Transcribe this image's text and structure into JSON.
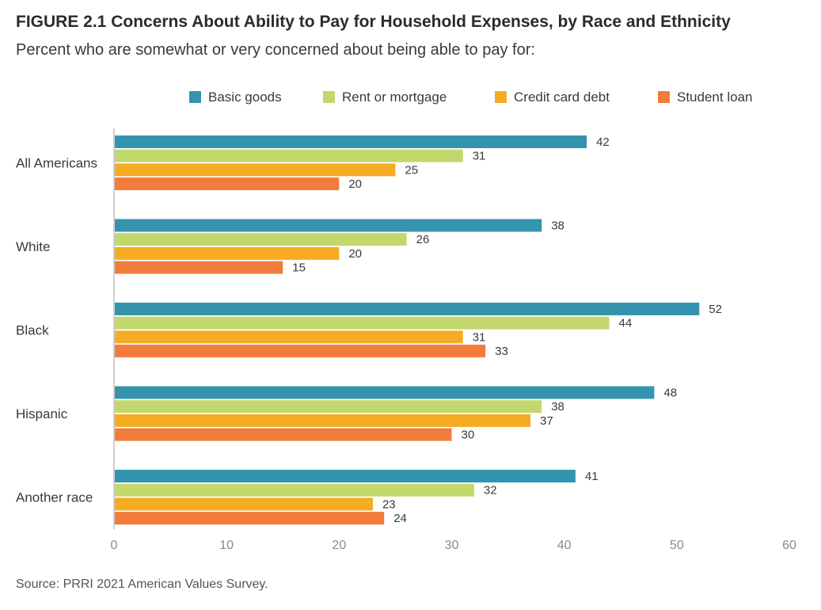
{
  "title": "FIGURE 2.1  Concerns About Ability to Pay for Household Expenses, by Race and Ethnicity",
  "subtitle": "Percent who are somewhat or very concerned about being able to pay for:",
  "source": "Source: PRRI 2021 American Values Survey.",
  "chart_data": {
    "type": "bar",
    "orientation": "horizontal",
    "categories": [
      "All Americans",
      "White",
      "Black",
      "Hispanic",
      "Another race"
    ],
    "series": [
      {
        "name": "Basic goods",
        "color": "#3494ad",
        "values": [
          42,
          38,
          52,
          48,
          41
        ]
      },
      {
        "name": "Rent or mortgage",
        "color": "#c3d86c",
        "values": [
          31,
          26,
          44,
          38,
          32
        ]
      },
      {
        "name": "Credit card debt",
        "color": "#f5ab22",
        "values": [
          25,
          20,
          31,
          37,
          23
        ]
      },
      {
        "name": "Student loan",
        "color": "#f27c3c",
        "values": [
          20,
          15,
          33,
          30,
          24
        ]
      }
    ],
    "xlim": [
      0,
      60
    ],
    "xticks": [
      0,
      10,
      20,
      30,
      40,
      50,
      60
    ],
    "legend_position": "top-right",
    "grid": false,
    "data_labels": true
  }
}
